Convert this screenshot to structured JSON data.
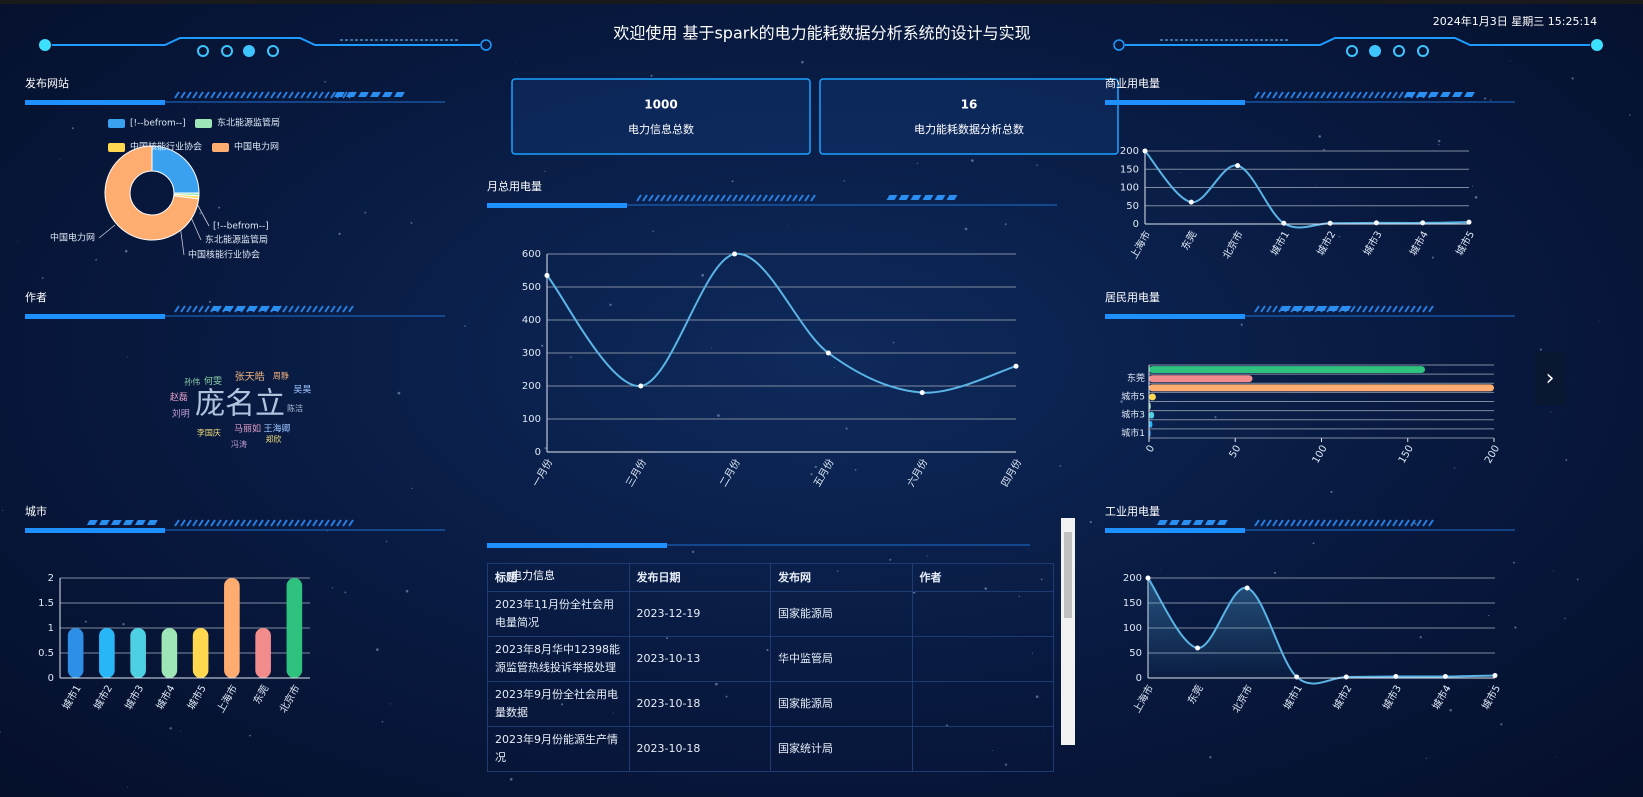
{
  "header": {
    "title": "欢迎使用 基于spark的电力能耗数据分析系统的设计与实现",
    "datetime": "2024年1月3日 星期三 15:25:14"
  },
  "stats": [
    {
      "value": 1000,
      "label": "电力信息总数"
    },
    {
      "value": 16,
      "label": "电力能耗数据分析总数"
    }
  ],
  "table": {
    "title": "电力信息",
    "columns": [
      "标题",
      "发布日期",
      "发布网",
      "作者"
    ],
    "rows": [
      [
        "2023年11月份全社会用电量简况",
        "2023-12-19",
        "国家能源局"
      ],
      [
        "2023年8月华中12398能源监管热线投诉举报处理",
        "2023-10-13",
        "华中监管局"
      ],
      [
        "2023年9月份全社会用电量数据",
        "2023-10-18",
        "国家能源局"
      ],
      [
        "2023年9月份能源生产情况",
        "2023-10-18",
        "国家统计局"
      ]
    ]
  },
  "chart_data": [
    {
      "type": "pie",
      "title": "发布网站",
      "donut": true,
      "categories": [
        "[!--befrom--]",
        "东北能源监管局",
        "中国核能行业协会",
        "中国电力网"
      ],
      "values": [
        25,
        1,
        1,
        73
      ],
      "colors": [
        "#3aa0f0",
        "#9ee6b7",
        "#ffd84f",
        "#ffac70"
      ]
    },
    {
      "type": "wordcloud",
      "title": "作者",
      "words": [
        "庞名立",
        "马丽如",
        "何雯",
        "张天皓",
        "王海卿",
        "李国庆",
        "刘明",
        "陈洁",
        "赵磊",
        "孙伟",
        "周静",
        "吴昊",
        "郑欣",
        "冯涛"
      ],
      "values": [
        30,
        9,
        9,
        10,
        9,
        8,
        9,
        8,
        9,
        8,
        8,
        9,
        8,
        8
      ],
      "colors": [
        "#b0c4de",
        "#e4a0c8",
        "#8fd3a8",
        "#f0b27a",
        "#9ec5ff",
        "#f5e07a",
        "#c39bd3"
      ]
    },
    {
      "type": "bar",
      "title": "城市",
      "categories": [
        "城市1",
        "城市2",
        "城市3",
        "城市4",
        "城市5",
        "上海市",
        "东莞",
        "北京市"
      ],
      "values": [
        1,
        1,
        1,
        1,
        1,
        2,
        1,
        2
      ],
      "colors": [
        "#2e8fe6",
        "#29b6f6",
        "#4dd0e1",
        "#9ee6b7",
        "#ffd84f",
        "#ffac70",
        "#f28b8b",
        "#2ec27e"
      ],
      "ylim": [
        0,
        2
      ],
      "yticks": [
        0,
        0.5,
        1,
        1.5,
        2
      ],
      "grid": true
    },
    {
      "type": "line",
      "title": "月总用电量",
      "smooth": true,
      "color": "#5ab4e6",
      "categories": [
        "一月份",
        "三月份",
        "二月份",
        "五月份",
        "六月份",
        "四月份"
      ],
      "values": [
        535,
        200,
        600,
        300,
        180,
        260
      ],
      "ylim": [
        0,
        600
      ],
      "yticks": [
        0,
        100,
        200,
        300,
        400,
        500,
        600
      ],
      "grid": true
    },
    {
      "type": "line",
      "title": "商业用电量",
      "smooth": true,
      "color": "#5ab4e6",
      "categories": [
        "上海市",
        "东莞",
        "北京市",
        "城市1",
        "城市2",
        "城市3",
        "城市4",
        "城市5"
      ],
      "values": [
        200,
        60,
        160,
        2,
        2,
        3,
        3,
        5
      ],
      "ylim": [
        0,
        200
      ],
      "yticks": [
        0,
        50,
        100,
        150,
        200
      ],
      "grid": true
    },
    {
      "type": "bar",
      "title": "居民用电量",
      "orientation": "horizontal",
      "categories": [
        "城市1",
        null,
        "城市3",
        null,
        "城市5",
        null,
        "东莞",
        null
      ],
      "values": [
        1,
        2,
        3,
        1,
        4,
        200,
        60,
        160
      ],
      "colors": [
        "#2e8fe6",
        "#29b6f6",
        "#4dd0e1",
        "#9ee6b7",
        "#ffd84f",
        "#ffac70",
        "#f28b8b",
        "#2ec27e"
      ],
      "xlim": [
        0,
        200
      ],
      "xticks": [
        0,
        50,
        100,
        150,
        200
      ],
      "grid": true
    },
    {
      "type": "line",
      "title": "工业用电量",
      "smooth": true,
      "area": true,
      "color": "#5ab4e6",
      "categories": [
        "上海市",
        "东莞",
        "北京市",
        "城市1",
        "城市2",
        "城市3",
        "城市4",
        "城市5"
      ],
      "values": [
        200,
        60,
        180,
        2,
        2,
        3,
        3,
        5
      ],
      "ylim": [
        0,
        200
      ],
      "yticks": [
        0,
        50,
        100,
        150,
        200
      ],
      "grid": true
    }
  ]
}
